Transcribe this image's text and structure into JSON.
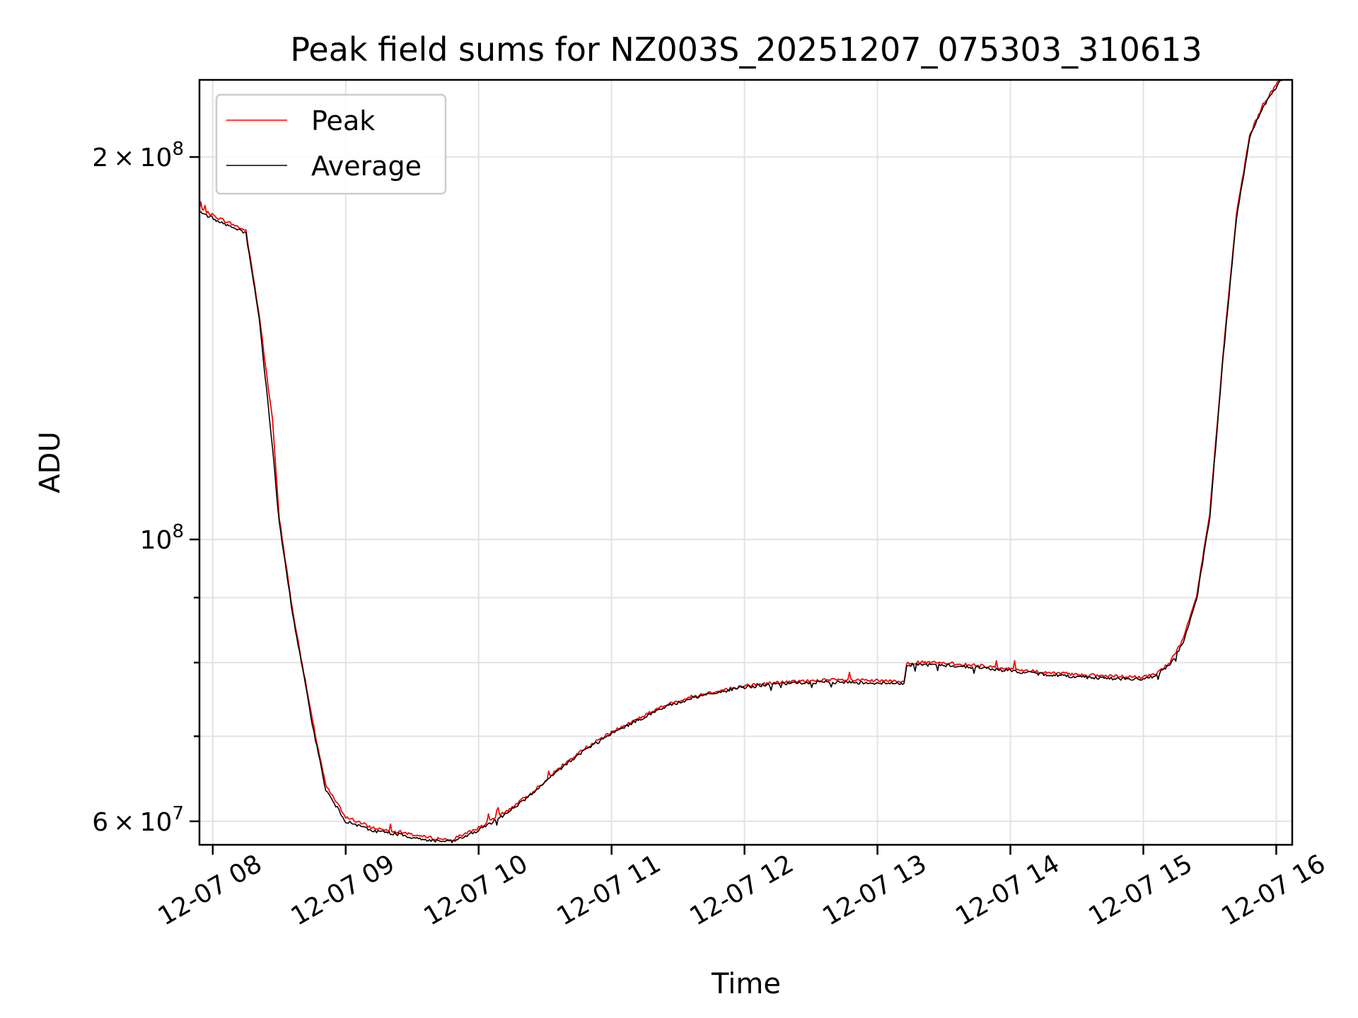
{
  "chart_data": {
    "type": "line",
    "title": "Peak field sums for NZ003S_20251207_075303_310613",
    "xlabel": "Time",
    "ylabel": "ADU",
    "yscale": "log",
    "grid": true,
    "legend_position": "top-left",
    "xlim": [
      "12-07 07:54",
      "12-07 16:07"
    ],
    "ylim": [
      57500000,
      230000000
    ],
    "x_ticks": [
      "12-07 08",
      "12-07 09",
      "12-07 10",
      "12-07 11",
      "12-07 12",
      "12-07 13",
      "12-07 14",
      "12-07 15",
      "12-07 16"
    ],
    "y_ticks": [
      {
        "value": 200000000,
        "base": "2 × 10",
        "exp": "8"
      },
      {
        "value": 100000000,
        "base": "10",
        "exp": "8"
      },
      {
        "value": 60000000,
        "base": "6 × 10",
        "exp": "7"
      }
    ],
    "x_unit_note": "hour of day on 12-07",
    "series": [
      {
        "name": "Peak",
        "color": "#ff0000",
        "x": [
          7.9,
          8.1,
          8.25,
          8.35,
          8.45,
          8.5,
          8.6,
          8.75,
          8.85,
          9.0,
          9.2,
          9.4,
          9.6,
          9.8,
          9.9,
          10.0,
          10.2,
          10.4,
          10.6,
          10.8,
          11.0,
          11.2,
          11.4,
          11.6,
          11.8,
          12.0,
          12.2,
          12.4,
          12.6,
          12.8,
          13.0,
          13.2,
          13.22,
          13.4,
          13.6,
          13.8,
          14.0,
          14.2,
          14.4,
          14.6,
          14.8,
          15.0,
          15.1,
          15.2,
          15.3,
          15.4,
          15.5,
          15.6,
          15.7,
          15.8,
          15.9,
          16.05
        ],
        "y": [
          182000000,
          178000000,
          175000000,
          150000000,
          124000000,
          104000000,
          88000000,
          72000000,
          64000000,
          60500000,
          59300000,
          58900000,
          58300000,
          58000000,
          58700000,
          59300000,
          61000000,
          63200000,
          66000000,
          68500000,
          70500000,
          72300000,
          74000000,
          75200000,
          76000000,
          76700000,
          77100000,
          77300000,
          77500000,
          77500000,
          77400000,
          77300000,
          80000000,
          80000000,
          79800000,
          79500000,
          79100000,
          78700000,
          78400000,
          78200000,
          78000000,
          77900000,
          78500000,
          80000000,
          83500000,
          90000000,
          105000000,
          140000000,
          180000000,
          208000000,
          220000000,
          232000000
        ]
      },
      {
        "name": "Average",
        "color": "#000000",
        "x": [
          7.9,
          8.1,
          8.25,
          8.35,
          8.45,
          8.5,
          8.6,
          8.75,
          8.85,
          9.0,
          9.2,
          9.4,
          9.6,
          9.8,
          9.9,
          10.0,
          10.2,
          10.4,
          10.6,
          10.8,
          11.0,
          11.2,
          11.4,
          11.6,
          11.8,
          12.0,
          12.2,
          12.4,
          12.6,
          12.8,
          13.0,
          13.2,
          13.22,
          13.4,
          13.6,
          13.8,
          14.0,
          14.2,
          14.4,
          14.6,
          14.8,
          15.0,
          15.1,
          15.2,
          15.3,
          15.4,
          15.5,
          15.6,
          15.7,
          15.8,
          15.9,
          16.05
        ],
        "y": [
          181000000,
          177000000,
          174000000,
          149000000,
          118000000,
          103000000,
          87500000,
          71500000,
          63500000,
          60000000,
          59000000,
          58600000,
          58000000,
          57800000,
          58400000,
          59000000,
          60800000,
          63000000,
          65800000,
          68300000,
          70300000,
          72100000,
          73800000,
          75000000,
          75800000,
          76500000,
          76900000,
          77100000,
          77200000,
          77200000,
          77100000,
          77000000,
          79700000,
          79700000,
          79500000,
          79200000,
          78800000,
          78400000,
          78100000,
          77900000,
          77700000,
          77600000,
          78200000,
          79700000,
          83000000,
          89500000,
          104000000,
          139000000,
          179000000,
          207000000,
          219000000,
          231000000
        ]
      }
    ]
  }
}
